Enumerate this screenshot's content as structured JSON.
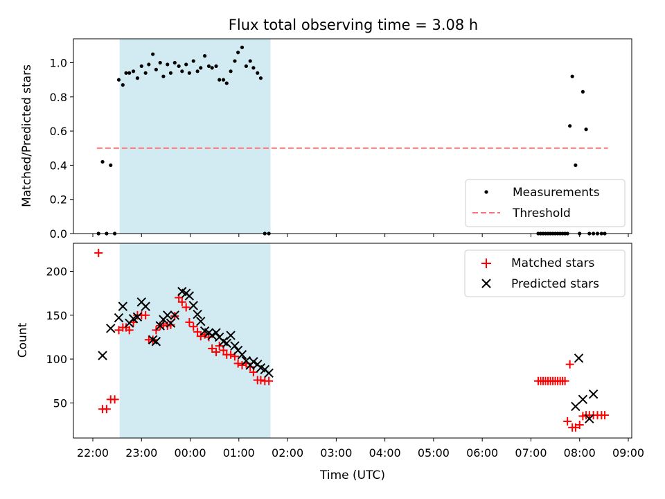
{
  "chart_data": [
    {
      "type": "scatter",
      "title": "Flux total observing time = 3.08 h",
      "xlabel": "",
      "ylabel": "Matched/Predicted stars",
      "ylim": [
        0,
        1.14
      ],
      "yticks": [
        "0.0",
        "0.2",
        "0.4",
        "0.6",
        "0.8",
        "1.0"
      ],
      "ytick_values": [
        0,
        0.2,
        0.4,
        0.6,
        0.8,
        1.0
      ],
      "shaded_span": {
        "start": "22:33",
        "end": "01:39",
        "color": "#add8e6"
      },
      "threshold": {
        "value": 0.5,
        "x_start": "22:05",
        "x_end": "08:35",
        "color": "#ff7070"
      },
      "legend": {
        "position": "lower-right",
        "entries": [
          "Measurements",
          "Threshold"
        ]
      },
      "series": [
        {
          "name": "Measurements",
          "color": "#000000",
          "x": [
            "22:07",
            "22:12",
            "22:17",
            "22:22",
            "22:27",
            "22:32",
            "22:37",
            "22:41",
            "22:45",
            "22:50",
            "22:55",
            "23:00",
            "23:05",
            "23:09",
            "23:14",
            "23:18",
            "23:23",
            "23:27",
            "23:32",
            "23:36",
            "23:41",
            "23:46",
            "23:50",
            "23:55",
            "23:59",
            "00:04",
            "00:09",
            "00:13",
            "00:18",
            "00:23",
            "00:27",
            "00:32",
            "00:36",
            "00:41",
            "00:45",
            "00:50",
            "00:55",
            "00:59",
            "01:04",
            "01:09",
            "01:14",
            "01:18",
            "01:23",
            "01:27",
            "01:32",
            "01:37",
            "07:09",
            "07:12",
            "07:15",
            "07:18",
            "07:21",
            "07:24",
            "07:27",
            "07:30",
            "07:33",
            "07:36",
            "07:39",
            "07:42",
            "07:45",
            "07:48",
            "07:51",
            "07:55",
            "08:00",
            "08:04",
            "08:08",
            "08:12",
            "08:17",
            "08:22",
            "08:27",
            "08:31"
          ],
          "y": [
            0.0,
            0.42,
            0.0,
            0.4,
            0.0,
            0.9,
            0.87,
            0.94,
            0.94,
            0.95,
            0.91,
            0.98,
            0.94,
            0.99,
            1.05,
            0.96,
            1.0,
            0.92,
            0.99,
            0.94,
            1.0,
            0.98,
            0.95,
            0.99,
            0.94,
            1.01,
            0.95,
            0.97,
            1.04,
            0.98,
            0.97,
            0.98,
            0.9,
            0.9,
            0.88,
            0.95,
            1.01,
            1.06,
            1.09,
            0.98,
            1.01,
            0.97,
            0.94,
            0.91,
            0.0,
            0.0,
            0.0,
            0.0,
            0.0,
            0.0,
            0.0,
            0.0,
            0.0,
            0.0,
            0.0,
            0.0,
            0.0,
            0.0,
            0.0,
            0.63,
            0.92,
            0.4,
            0.0,
            0.83,
            0.61,
            0.0,
            0.0,
            0.0,
            0.0,
            0.0
          ]
        }
      ]
    },
    {
      "type": "scatter",
      "xlabel": "Time (UTC)",
      "ylabel": "Count",
      "ylim": [
        10,
        232
      ],
      "yticks": [
        "50",
        "100",
        "150",
        "200"
      ],
      "ytick_values": [
        50,
        100,
        150,
        200
      ],
      "xticks": [
        "22:00",
        "23:00",
        "00:00",
        "01:00",
        "02:00",
        "03:00",
        "04:00",
        "05:00",
        "06:00",
        "07:00",
        "08:00",
        "09:00"
      ],
      "shaded_span": {
        "start": "22:33",
        "end": "01:39",
        "color": "#add8e6"
      },
      "legend": {
        "position": "upper-right",
        "entries": [
          "Matched stars",
          "Predicted stars"
        ]
      },
      "series": [
        {
          "name": "Matched stars",
          "color": "#ff0000",
          "marker": "+",
          "x": [
            "22:07",
            "22:12",
            "22:17",
            "22:22",
            "22:27",
            "22:32",
            "22:37",
            "22:41",
            "22:45",
            "22:50",
            "22:55",
            "23:00",
            "23:05",
            "23:09",
            "23:14",
            "23:18",
            "23:23",
            "23:27",
            "23:32",
            "23:36",
            "23:41",
            "23:46",
            "23:50",
            "23:55",
            "23:59",
            "00:04",
            "00:09",
            "00:13",
            "00:18",
            "00:23",
            "00:27",
            "00:32",
            "00:36",
            "00:41",
            "00:45",
            "00:50",
            "00:55",
            "00:59",
            "01:04",
            "01:09",
            "01:14",
            "01:18",
            "01:23",
            "01:27",
            "01:32",
            "01:37",
            "07:09",
            "07:12",
            "07:15",
            "07:18",
            "07:21",
            "07:24",
            "07:27",
            "07:30",
            "07:33",
            "07:36",
            "07:39",
            "07:42",
            "07:45",
            "07:48",
            "07:51",
            "07:55",
            "08:00",
            "08:04",
            "08:08",
            "08:12",
            "08:17",
            "08:22",
            "08:27",
            "08:31"
          ],
          "y": [
            221,
            43,
            43,
            54,
            54,
            133,
            136,
            136,
            133,
            142,
            150,
            150,
            150,
            122,
            122,
            133,
            138,
            140,
            138,
            139,
            149,
            170,
            165,
            159,
            142,
            137,
            131,
            126,
            128,
            125,
            112,
            108,
            115,
            110,
            105,
            105,
            103,
            95,
            93,
            95,
            91,
            85,
            76,
            76,
            75,
            75,
            75,
            75,
            75,
            75,
            75,
            75,
            75,
            75,
            75,
            75,
            75,
            75,
            29,
            94,
            22,
            22,
            25,
            35,
            36,
            36,
            36,
            36,
            36,
            36
          ]
        },
        {
          "name": "Predicted stars",
          "color": "#000000",
          "marker": "x",
          "x": [
            "22:12",
            "22:22",
            "22:32",
            "22:37",
            "22:45",
            "22:50",
            "22:55",
            "23:00",
            "23:05",
            "23:14",
            "23:18",
            "23:23",
            "23:27",
            "23:32",
            "23:36",
            "23:41",
            "23:50",
            "23:55",
            "23:59",
            "00:04",
            "00:09",
            "00:13",
            "00:18",
            "00:23",
            "00:27",
            "00:32",
            "00:36",
            "00:41",
            "00:45",
            "00:50",
            "00:55",
            "00:59",
            "01:04",
            "01:09",
            "01:14",
            "01:18",
            "01:23",
            "01:27",
            "01:32",
            "01:37",
            "07:55",
            "07:59",
            "08:04",
            "08:12",
            "08:17"
          ],
          "y": [
            104,
            135,
            147,
            160,
            141,
            146,
            148,
            165,
            160,
            122,
            120,
            138,
            145,
            150,
            141,
            150,
            177,
            175,
            172,
            161,
            151,
            143,
            132,
            130,
            127,
            130,
            125,
            120,
            118,
            127,
            115,
            110,
            105,
            98,
            93,
            97,
            94,
            90,
            88,
            84,
            46,
            101,
            54,
            32,
            60
          ]
        }
      ]
    }
  ]
}
